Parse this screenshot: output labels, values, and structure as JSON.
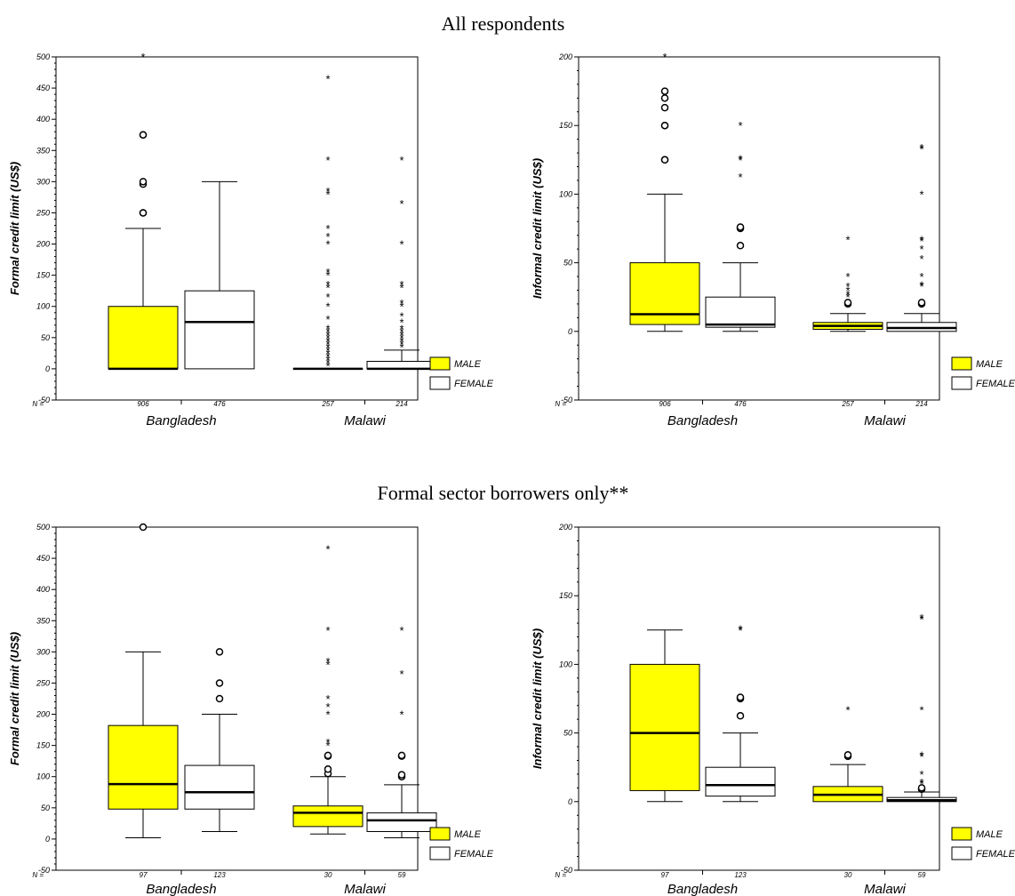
{
  "section_titles": [
    "All respondents",
    "Formal sector borrowers only**"
  ],
  "colors": {
    "male": "#ffff00",
    "female": "#ffffff",
    "line": "#000000"
  },
  "chart_data": [
    {
      "type": "boxplot",
      "title": "",
      "ylabel": "Formal credit limit (US$)",
      "ylim": [
        -50,
        500
      ],
      "yticks": [
        -50,
        0,
        50,
        100,
        150,
        200,
        250,
        300,
        350,
        400,
        450,
        500
      ],
      "categories": [
        "Bangladesh",
        "Malawi"
      ],
      "n_label": "N =",
      "legend": [
        "MALE",
        "FEMALE"
      ],
      "legend_position": "lower-right, outside plot",
      "boxes": [
        {
          "category": "Bangladesh",
          "series": "MALE",
          "n": "906",
          "whisker_low": 0,
          "q1": 0,
          "median": 0,
          "q3": 100,
          "whisker_high": 225,
          "outliers_circle": [
            250,
            250,
            296,
            300,
            375,
            375
          ],
          "outliers_star": [
            500
          ]
        },
        {
          "category": "Bangladesh",
          "series": "FEMALE",
          "n": "476",
          "whisker_low": 0,
          "q1": 0,
          "median": 75,
          "q3": 125,
          "whisker_high": 300,
          "outliers_circle": [],
          "outliers_star": []
        },
        {
          "category": "Malawi",
          "series": "MALE",
          "n": "257",
          "whisker_low": 0,
          "q1": 0,
          "median": 0,
          "q3": 0,
          "whisker_high": 0,
          "outliers_circle": [],
          "outliers_star": [
            5,
            10,
            15,
            20,
            25,
            30,
            35,
            40,
            45,
            50,
            55,
            60,
            65,
            80,
            100,
            115,
            130,
            135,
            150,
            155,
            200,
            212,
            225,
            280,
            285,
            335,
            465
          ]
        },
        {
          "category": "Malawi",
          "series": "FEMALE",
          "n": "214",
          "whisker_low": 0,
          "q1": 0,
          "median": 0,
          "q3": 12,
          "whisker_high": 30,
          "outliers_circle": [],
          "outliers_star": [
            35,
            40,
            45,
            50,
            55,
            60,
            65,
            75,
            85,
            100,
            105,
            130,
            135,
            200,
            265,
            335
          ]
        }
      ]
    },
    {
      "type": "boxplot",
      "title": "",
      "ylabel": "Informal credit limit (US$)",
      "ylim": [
        -50,
        200
      ],
      "yticks": [
        -50,
        0,
        50,
        100,
        150,
        200
      ],
      "categories": [
        "Bangladesh",
        "Malawi"
      ],
      "n_label": "N =",
      "legend": [
        "MALE",
        "FEMALE"
      ],
      "legend_position": "lower-right, outside plot",
      "boxes": [
        {
          "category": "Bangladesh",
          "series": "MALE",
          "n": "906",
          "whisker_low": 0,
          "q1": 5,
          "median": 12.5,
          "q3": 50,
          "whisker_high": 100,
          "outliers_circle": [
            125,
            125,
            150,
            150,
            163,
            170,
            175
          ],
          "outliers_star": [
            200
          ]
        },
        {
          "category": "Bangladesh",
          "series": "FEMALE",
          "n": "476",
          "whisker_low": 0,
          "q1": 3,
          "median": 5,
          "q3": 25,
          "whisker_high": 50,
          "outliers_circle": [
            62.5,
            75,
            76
          ],
          "outliers_star": [
            112.5,
            125,
            126,
            150
          ]
        },
        {
          "category": "Malawi",
          "series": "MALE",
          "n": "257",
          "whisker_low": 0,
          "q1": 1.5,
          "median": 4,
          "q3": 6.5,
          "whisker_high": 13,
          "outliers_circle": [
            20,
            21
          ],
          "outliers_star": [
            25,
            27,
            30,
            33,
            40,
            67
          ]
        },
        {
          "category": "Malawi",
          "series": "FEMALE",
          "n": "214",
          "whisker_low": 0,
          "q1": 0,
          "median": 2.5,
          "q3": 6.5,
          "whisker_high": 13,
          "outliers_circle": [
            20,
            21
          ],
          "outliers_star": [
            33,
            34,
            40,
            53,
            60,
            66,
            67,
            100,
            133,
            134
          ]
        }
      ]
    },
    {
      "type": "boxplot",
      "title": "",
      "ylabel": "Formal credit limit (US$)",
      "ylim": [
        -50,
        500
      ],
      "yticks": [
        -50,
        0,
        50,
        100,
        150,
        200,
        250,
        300,
        350,
        400,
        450,
        500
      ],
      "categories": [
        "Bangladesh",
        "Malawi"
      ],
      "n_label": "N =",
      "legend": [
        "MALE",
        "FEMALE"
      ],
      "legend_position": "lower-right, outside plot",
      "boxes": [
        {
          "category": "Bangladesh",
          "series": "MALE",
          "n": "97",
          "whisker_low": 2,
          "q1": 48,
          "median": 88,
          "q3": 182,
          "whisker_high": 300,
          "outliers_circle": [
            500
          ],
          "outliers_star": []
        },
        {
          "category": "Bangladesh",
          "series": "FEMALE",
          "n": "123",
          "whisker_low": 12,
          "q1": 48,
          "median": 75,
          "q3": 118,
          "whisker_high": 200,
          "outliers_circle": [
            225,
            250,
            300
          ],
          "outliers_star": []
        },
        {
          "category": "Malawi",
          "series": "MALE",
          "n": "30",
          "whisker_low": 8,
          "q1": 20,
          "median": 42,
          "q3": 53,
          "whisker_high": 100,
          "outliers_circle": [
            105,
            112,
            133,
            134
          ],
          "outliers_star": [
            150,
            155,
            200,
            212,
            225,
            280,
            285,
            335,
            465
          ]
        },
        {
          "category": "Malawi",
          "series": "FEMALE",
          "n": "59",
          "whisker_low": 2,
          "q1": 12,
          "median": 30,
          "q3": 42,
          "whisker_high": 87,
          "outliers_circle": [
            100,
            103,
            133,
            134
          ],
          "outliers_star": [
            200,
            265,
            335
          ]
        }
      ]
    },
    {
      "type": "boxplot",
      "title": "",
      "ylabel": "Informal credit limit (US$)",
      "ylim": [
        -50,
        200
      ],
      "yticks": [
        -50,
        0,
        50,
        100,
        150,
        200
      ],
      "categories": [
        "Bangladesh",
        "Malawi"
      ],
      "n_label": "N =",
      "legend": [
        "MALE",
        "FEMALE"
      ],
      "legend_position": "lower-right, outside plot",
      "boxes": [
        {
          "category": "Bangladesh",
          "series": "MALE",
          "n": "97",
          "whisker_low": 0,
          "q1": 8,
          "median": 50,
          "q3": 100,
          "whisker_high": 125,
          "outliers_circle": [],
          "outliers_star": []
        },
        {
          "category": "Bangladesh",
          "series": "FEMALE",
          "n": "123",
          "whisker_low": 0,
          "q1": 4,
          "median": 12,
          "q3": 25,
          "whisker_high": 50,
          "outliers_circle": [
            62.5,
            75,
            76
          ],
          "outliers_star": [
            125,
            126
          ]
        },
        {
          "category": "Malawi",
          "series": "MALE",
          "n": "30",
          "whisker_low": 0,
          "q1": 0,
          "median": 5,
          "q3": 11,
          "whisker_high": 27,
          "outliers_circle": [
            33,
            34
          ],
          "outliers_star": [
            67
          ]
        },
        {
          "category": "Malawi",
          "series": "FEMALE",
          "n": "59",
          "whisker_low": 0,
          "q1": 0,
          "median": 1,
          "q3": 3,
          "whisker_high": 7,
          "outliers_circle": [
            9,
            10
          ],
          "outliers_star": [
            13,
            14,
            20,
            33,
            34,
            67,
            133,
            134
          ]
        }
      ]
    }
  ]
}
